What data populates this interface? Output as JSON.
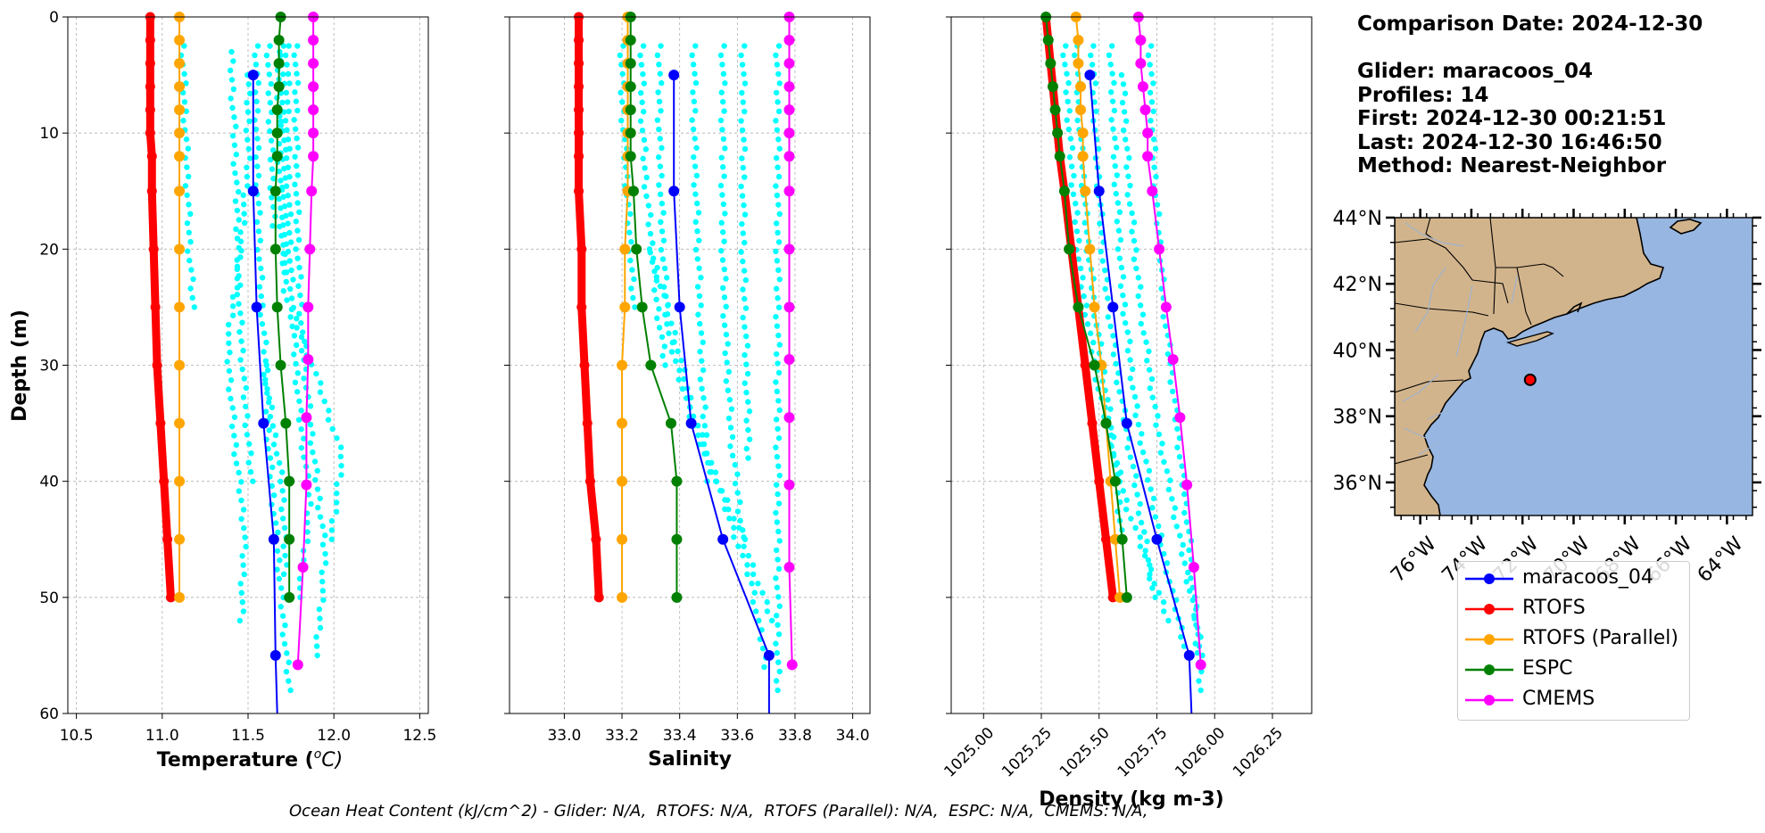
{
  "info": {
    "comparison_date": "Comparison Date: 2024-12-30",
    "glider": "Glider: maracoos_04",
    "profiles": "Profiles: 14",
    "first": "First: 2024-12-30 00:21:51",
    "last": "Last: 2024-12-30 16:46:50",
    "method": "Method: Nearest-Neighbor"
  },
  "footer": "Ocean Heat Content (kJ/cm^2) - Glider: N/A,  RTOFS: N/A,  RTOFS (Parallel): N/A,  ESPC: N/A,  CMEMS: N/A,",
  "colors": {
    "glider": "#0000ff",
    "rtofs": "#ff0000",
    "rtofs_parallel": "#ffa500",
    "espc": "#008000",
    "cmems": "#ff00ff",
    "raw": "#00ffff",
    "land": "#d2b48c",
    "ocean": "#97b6e1",
    "grid": "#b0b0b0"
  },
  "legend": [
    {
      "label": "maracoos_04",
      "color": "#0000ff"
    },
    {
      "label": "RTOFS",
      "color": "#ff0000"
    },
    {
      "label": "RTOFS (Parallel)",
      "color": "#ffa500"
    },
    {
      "label": "ESPC",
      "color": "#008000"
    },
    {
      "label": "CMEMS",
      "color": "#ff00ff"
    }
  ],
  "map": {
    "lat_ticks": [
      "44°N",
      "42°N",
      "40°N",
      "38°N",
      "36°N"
    ],
    "lon_ticks": [
      "76°W",
      "74°W",
      "72°W",
      "70°W",
      "68°W",
      "66°W",
      "64°W"
    ],
    "extent": {
      "lon": [
        -77,
        -63
      ],
      "lat": [
        35,
        44
      ]
    },
    "glider_position": {
      "lon": -71.7,
      "lat": 39.1
    }
  },
  "chart_data": [
    {
      "type": "line",
      "xlabel": "Temperature (",
      "xlabel_unit_sup": "o",
      "xlabel_unit": "C)",
      "ylabel": "Depth (m)",
      "xlim": [
        10.45,
        12.55
      ],
      "ylim": [
        60,
        0
      ],
      "xticks": [
        "10.5",
        "11.0",
        "11.5",
        "12.0",
        "12.5"
      ],
      "xtick_values": [
        10.5,
        11.0,
        11.5,
        12.0,
        12.5
      ],
      "yticks": [
        "0",
        "10",
        "20",
        "30",
        "40",
        "50",
        "60"
      ],
      "ytick_values": [
        0,
        10,
        20,
        30,
        40,
        50,
        60
      ],
      "grid": true,
      "series": [
        {
          "name": "maracoos_04",
          "key": "glider",
          "depths": [
            5,
            15,
            25,
            35,
            45,
            55,
            60
          ],
          "values": [
            11.53,
            11.53,
            11.55,
            11.59,
            11.65,
            11.66,
            11.67
          ],
          "markers_until": 6
        },
        {
          "name": "RTOFS",
          "key": "rtofs",
          "depths": [
            0,
            2,
            4,
            6,
            8,
            10,
            12,
            15,
            20,
            25,
            30,
            35,
            40,
            45,
            50
          ],
          "values": [
            10.93,
            10.93,
            10.93,
            10.93,
            10.93,
            10.93,
            10.94,
            10.94,
            10.95,
            10.96,
            10.97,
            10.99,
            11.01,
            11.03,
            11.05
          ],
          "thick": true
        },
        {
          "name": "RTOFS (Parallel)",
          "key": "rtofs_parallel",
          "depths": [
            0,
            2,
            4,
            6,
            8,
            10,
            12,
            15,
            20,
            25,
            30,
            35,
            40,
            45,
            50
          ],
          "values": [
            11.1,
            11.1,
            11.1,
            11.1,
            11.1,
            11.1,
            11.1,
            11.1,
            11.1,
            11.1,
            11.1,
            11.1,
            11.1,
            11.1,
            11.1
          ]
        },
        {
          "name": "ESPC",
          "key": "espc",
          "depths": [
            0,
            2,
            4,
            6,
            8,
            10,
            12,
            15,
            20,
            25,
            30,
            35,
            40,
            45,
            50
          ],
          "values": [
            11.69,
            11.68,
            11.68,
            11.68,
            11.67,
            11.67,
            11.67,
            11.66,
            11.66,
            11.67,
            11.69,
            11.72,
            11.74,
            11.74,
            11.74
          ]
        },
        {
          "name": "CMEMS",
          "key": "cmems",
          "depths": [
            0,
            2,
            4,
            6,
            8,
            10,
            12,
            15,
            20,
            25,
            29.5,
            34.5,
            40.3,
            47.4,
            55.8
          ],
          "values": [
            11.88,
            11.88,
            11.88,
            11.88,
            11.88,
            11.88,
            11.88,
            11.87,
            11.86,
            11.85,
            11.85,
            11.84,
            11.84,
            11.82,
            11.79
          ]
        }
      ],
      "raw_profiles": [
        {
          "depth_range": [
            2.5,
            18
          ],
          "values": [
            11.62,
            11.62,
            11.63,
            11.63,
            11.64,
            11.64,
            11.65
          ]
        },
        {
          "depth_range": [
            2.5,
            22
          ],
          "values": [
            11.7,
            11.7,
            11.71,
            11.71,
            11.72
          ]
        },
        {
          "depth_range": [
            2.5,
            25
          ],
          "values": [
            11.12,
            11.13,
            11.14,
            11.15,
            11.16,
            11.18
          ]
        },
        {
          "depth_range": [
            5,
            52
          ],
          "values": [
            11.5,
            11.5,
            11.45,
            11.38,
            11.42,
            11.48,
            11.46
          ]
        },
        {
          "depth_range": [
            2.5,
            55
          ],
          "values": [
            11.78,
            11.78,
            11.79,
            11.82,
            11.88,
            11.95,
            11.9
          ]
        },
        {
          "depth_range": [
            2.5,
            48
          ],
          "values": [
            11.55,
            11.55,
            11.56,
            11.58,
            11.62,
            11.7,
            11.72
          ]
        },
        {
          "depth_range": [
            3,
            45
          ],
          "values": [
            11.68,
            11.68,
            11.69,
            11.72,
            11.9,
            12.05,
            11.98
          ]
        },
        {
          "depth_range": [
            3,
            40
          ],
          "values": [
            11.4,
            11.42,
            11.44,
            11.45,
            11.48,
            11.52
          ]
        },
        {
          "depth_range": [
            2.5,
            50
          ],
          "values": [
            11.73,
            11.73,
            11.74,
            11.76,
            11.8,
            11.86,
            11.8
          ]
        },
        {
          "depth_range": [
            30,
            58
          ],
          "values": [
            11.6,
            11.62,
            11.66,
            11.7,
            11.74
          ]
        }
      ]
    },
    {
      "type": "line",
      "xlabel": "Salinity",
      "xlim": [
        32.81,
        34.06
      ],
      "ylim": [
        60,
        0
      ],
      "xticks": [
        "33.0",
        "33.2",
        "33.4",
        "33.6",
        "33.8",
        "34.0"
      ],
      "xtick_values": [
        33.0,
        33.2,
        33.4,
        33.6,
        33.8,
        34.0
      ],
      "grid": true,
      "series": [
        {
          "name": "maracoos_04",
          "key": "glider",
          "depths": [
            5,
            15,
            25,
            35,
            45,
            55,
            60
          ],
          "values": [
            33.38,
            33.38,
            33.4,
            33.44,
            33.55,
            33.71,
            33.71
          ],
          "markers_until": 6
        },
        {
          "name": "RTOFS",
          "key": "rtofs",
          "depths": [
            0,
            2,
            4,
            6,
            8,
            10,
            12,
            15,
            20,
            25,
            30,
            35,
            40,
            45,
            50
          ],
          "values": [
            33.05,
            33.05,
            33.05,
            33.05,
            33.05,
            33.05,
            33.05,
            33.05,
            33.06,
            33.06,
            33.07,
            33.08,
            33.09,
            33.11,
            33.12
          ],
          "thick": true
        },
        {
          "name": "RTOFS (Parallel)",
          "key": "rtofs_parallel",
          "depths": [
            0,
            2,
            4,
            6,
            8,
            10,
            12,
            15,
            20,
            25,
            30,
            35,
            40,
            45,
            50
          ],
          "values": [
            33.22,
            33.22,
            33.22,
            33.22,
            33.22,
            33.22,
            33.22,
            33.22,
            33.21,
            33.21,
            33.2,
            33.2,
            33.2,
            33.2,
            33.2
          ]
        },
        {
          "name": "ESPC",
          "key": "espc",
          "depths": [
            0,
            2,
            4,
            6,
            8,
            10,
            12,
            15,
            20,
            25,
            30,
            35,
            40,
            45,
            50
          ],
          "values": [
            33.23,
            33.23,
            33.23,
            33.23,
            33.23,
            33.23,
            33.23,
            33.24,
            33.25,
            33.27,
            33.3,
            33.37,
            33.39,
            33.39,
            33.39
          ]
        },
        {
          "name": "CMEMS",
          "key": "cmems",
          "depths": [
            0,
            2,
            4,
            6,
            8,
            10,
            12,
            15,
            20,
            25,
            29.5,
            34.5,
            40.3,
            47.4,
            55.8
          ],
          "values": [
            33.78,
            33.78,
            33.78,
            33.78,
            33.78,
            33.78,
            33.78,
            33.78,
            33.78,
            33.78,
            33.78,
            33.78,
            33.78,
            33.78,
            33.79
          ]
        }
      ],
      "raw_profiles": [
        {
          "depth_range": [
            2.5,
            25
          ],
          "values": [
            33.2,
            33.2,
            33.21,
            33.22,
            33.23,
            33.24
          ]
        },
        {
          "depth_range": [
            2.5,
            30
          ],
          "values": [
            33.27,
            33.27,
            33.28,
            33.3,
            33.32,
            33.35
          ]
        },
        {
          "depth_range": [
            2.5,
            52
          ],
          "values": [
            33.33,
            33.33,
            33.34,
            33.36,
            33.45,
            33.6,
            33.72
          ]
        },
        {
          "depth_range": [
            2.5,
            40
          ],
          "values": [
            33.45,
            33.45,
            33.46,
            33.47,
            33.48,
            33.5
          ]
        },
        {
          "depth_range": [
            2.5,
            45
          ],
          "values": [
            33.55,
            33.55,
            33.55,
            33.56,
            33.58,
            33.62
          ]
        },
        {
          "depth_range": [
            2.5,
            58
          ],
          "values": [
            33.74,
            33.74,
            33.74,
            33.74,
            33.74,
            33.74,
            33.74
          ]
        },
        {
          "depth_range": [
            2.5,
            38
          ],
          "values": [
            33.62,
            33.62,
            33.62,
            33.63,
            33.64
          ]
        },
        {
          "depth_range": [
            20,
            56
          ],
          "values": [
            33.3,
            33.38,
            33.45,
            33.55,
            33.65,
            33.7
          ]
        }
      ]
    },
    {
      "type": "line",
      "xlabel": "Density (kg m-3)",
      "xlim": [
        1024.86,
        1026.42
      ],
      "ylim": [
        60,
        0
      ],
      "xticks": [
        "1025.00",
        "1025.25",
        "1025.50",
        "1025.75",
        "1026.00",
        "1026.25"
      ],
      "xtick_values": [
        1025.0,
        1025.25,
        1025.5,
        1025.75,
        1026.0,
        1026.25
      ],
      "grid": true,
      "series": [
        {
          "name": "maracoos_04",
          "key": "glider",
          "depths": [
            5,
            15,
            25,
            35,
            45,
            55,
            60
          ],
          "values": [
            1025.46,
            1025.5,
            1025.56,
            1025.62,
            1025.75,
            1025.89,
            1025.9
          ],
          "markers_until": 6
        },
        {
          "name": "RTOFS",
          "key": "rtofs",
          "depths": [
            0,
            2,
            4,
            6,
            8,
            10,
            12,
            15,
            20,
            25,
            30,
            35,
            40,
            45,
            50
          ],
          "values": [
            1025.27,
            1025.28,
            1025.29,
            1025.3,
            1025.31,
            1025.32,
            1025.33,
            1025.35,
            1025.38,
            1025.41,
            1025.44,
            1025.47,
            1025.5,
            1025.53,
            1025.56
          ],
          "thick": true
        },
        {
          "name": "RTOFS (Parallel)",
          "key": "rtofs_parallel",
          "depths": [
            0,
            2,
            4,
            6,
            8,
            10,
            12,
            15,
            20,
            25,
            30,
            35,
            40,
            45,
            50
          ],
          "values": [
            1025.4,
            1025.41,
            1025.41,
            1025.42,
            1025.42,
            1025.43,
            1025.43,
            1025.44,
            1025.46,
            1025.48,
            1025.51,
            1025.53,
            1025.55,
            1025.57,
            1025.59
          ]
        },
        {
          "name": "ESPC",
          "key": "espc",
          "depths": [
            0,
            2,
            4,
            6,
            8,
            10,
            12,
            15,
            20,
            25,
            30,
            35,
            40,
            45,
            50
          ],
          "values": [
            1025.27,
            1025.28,
            1025.29,
            1025.3,
            1025.31,
            1025.32,
            1025.33,
            1025.35,
            1025.37,
            1025.41,
            1025.48,
            1025.53,
            1025.57,
            1025.6,
            1025.62
          ]
        },
        {
          "name": "CMEMS",
          "key": "cmems",
          "depths": [
            0,
            2,
            4,
            6,
            8,
            10,
            12,
            15,
            20,
            25,
            29.5,
            34.5,
            40.3,
            47.4,
            55.8
          ],
          "values": [
            1025.67,
            1025.68,
            1025.68,
            1025.69,
            1025.7,
            1025.71,
            1025.71,
            1025.73,
            1025.76,
            1025.79,
            1025.82,
            1025.85,
            1025.88,
            1025.91,
            1025.94
          ]
        }
      ],
      "raw_profiles": [
        {
          "depth_range": [
            2.5,
            45
          ],
          "values": [
            1025.4,
            1025.42,
            1025.45,
            1025.5,
            1025.56,
            1025.6
          ]
        },
        {
          "depth_range": [
            2.5,
            50
          ],
          "values": [
            1025.47,
            1025.49,
            1025.52,
            1025.58,
            1025.66,
            1025.74
          ]
        },
        {
          "depth_range": [
            2.5,
            55
          ],
          "values": [
            1025.55,
            1025.57,
            1025.6,
            1025.66,
            1025.76,
            1025.88
          ]
        },
        {
          "depth_range": [
            2.5,
            58
          ],
          "values": [
            1025.72,
            1025.74,
            1025.78,
            1025.84,
            1025.9,
            1025.94
          ]
        },
        {
          "depth_range": [
            2.5,
            52
          ],
          "values": [
            1025.35,
            1025.38,
            1025.42,
            1025.5,
            1025.62,
            1025.8
          ]
        },
        {
          "depth_range": [
            5,
            55
          ],
          "values": [
            1025.6,
            1025.63,
            1025.68,
            1025.75,
            1025.85,
            1025.95
          ]
        }
      ]
    }
  ]
}
